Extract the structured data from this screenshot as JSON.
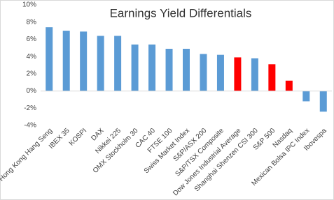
{
  "chart_data": {
    "type": "bar",
    "title": "Earnings Yield Differentials",
    "categories": [
      "Hong Kong Hang Seng",
      "IBEX 35",
      "KOSPI",
      "DAX",
      "Nikkei 225",
      "OMX Stockholm 30",
      "CAC 40",
      "FTSE 100",
      "Swiss Market Index",
      "S&P/ASX 200",
      "S&P/TSX Composite",
      "Dow Jones Industrial Average",
      "Shanghai Shenzen CSI 300",
      "S&P 500",
      "Nasdaq",
      "Mexican Bolsa IPC Index",
      "Ibovespa"
    ],
    "values": [
      7.4,
      7.0,
      6.9,
      6.4,
      6.4,
      5.4,
      5.4,
      4.9,
      4.9,
      4.3,
      4.2,
      3.9,
      3.8,
      3.1,
      1.2,
      -1.2,
      -2.4
    ],
    "colors": [
      "#5b9bd5",
      "#5b9bd5",
      "#5b9bd5",
      "#5b9bd5",
      "#5b9bd5",
      "#5b9bd5",
      "#5b9bd5",
      "#5b9bd5",
      "#5b9bd5",
      "#5b9bd5",
      "#5b9bd5",
      "#ff0000",
      "#5b9bd5",
      "#ff0000",
      "#ff0000",
      "#5b9bd5",
      "#5b9bd5"
    ],
    "ylim": [
      -4,
      10
    ],
    "yticks": [
      {
        "value": -4,
        "label": "-4%"
      },
      {
        "value": -2,
        "label": "-2%"
      },
      {
        "value": 0,
        "label": "0%"
      },
      {
        "value": 2,
        "label": "2%"
      },
      {
        "value": 4,
        "label": "4%"
      },
      {
        "value": 6,
        "label": "6%"
      },
      {
        "value": 8,
        "label": "8%"
      },
      {
        "value": 10,
        "label": "10%"
      }
    ],
    "grid": false
  }
}
